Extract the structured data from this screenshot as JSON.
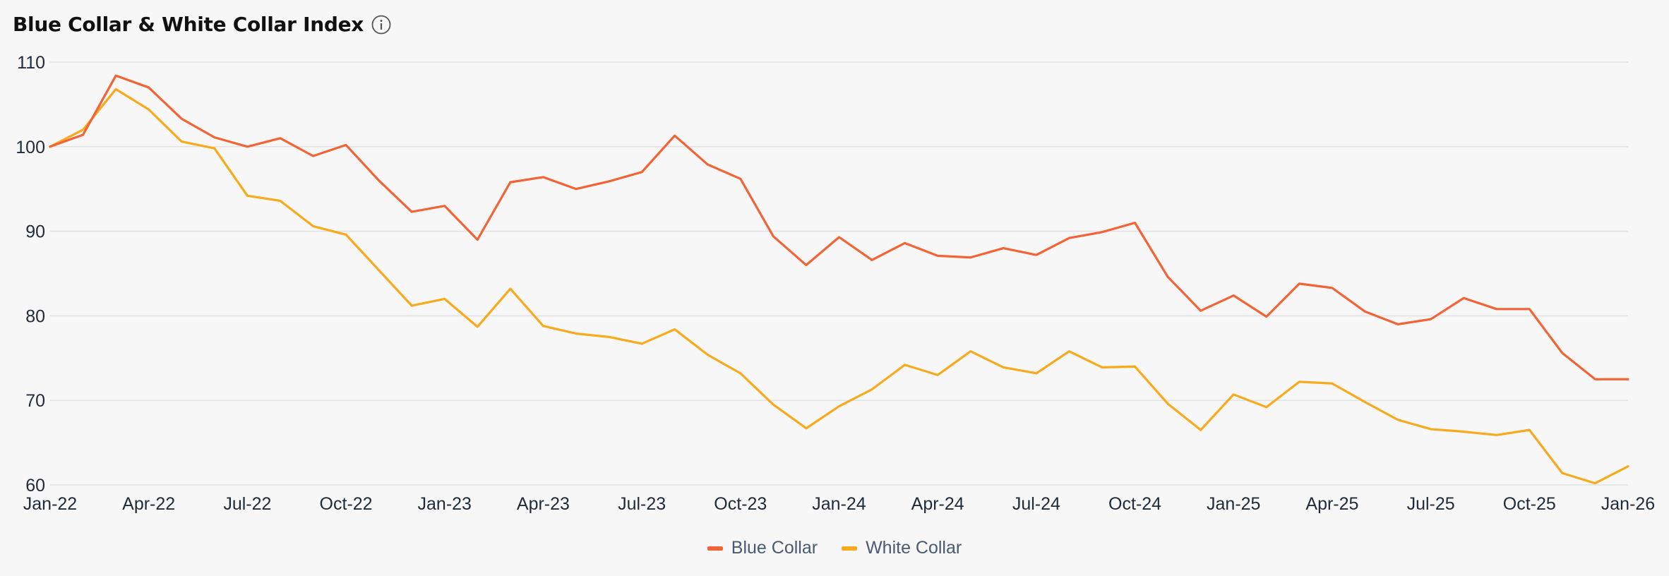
{
  "header": {
    "title": "Blue Collar & White Collar Index",
    "info_icon": "info-circle-icon"
  },
  "colors": {
    "blue_collar": "#f26436",
    "white_collar": "#f9a91c",
    "grid": "#e2e2e2",
    "background": "#f7f7f7"
  },
  "chart_data": {
    "type": "line",
    "title": "Blue Collar & White Collar Index",
    "xlabel": "",
    "ylabel": "",
    "ylim": [
      60,
      110
    ],
    "yticks": [
      60,
      70,
      80,
      90,
      100,
      110
    ],
    "x_tick_labels": [
      "Jan-22",
      "Apr-22",
      "Jul-22",
      "Oct-22",
      "Jan-23",
      "Apr-23",
      "Jul-23",
      "Oct-23",
      "Jan-24",
      "Apr-24",
      "Jul-24",
      "Oct-24",
      "Jan-25",
      "Apr-25",
      "Jul-25",
      "Oct-25",
      "Jan-26"
    ],
    "x": [
      "Jan-22",
      "Feb-22",
      "Mar-22",
      "Apr-22",
      "May-22",
      "Jun-22",
      "Jul-22",
      "Aug-22",
      "Sep-22",
      "Oct-22",
      "Nov-22",
      "Dec-22",
      "Jan-23",
      "Feb-23",
      "Mar-23",
      "Apr-23",
      "May-23",
      "Jun-23",
      "Jul-23",
      "Aug-23",
      "Sep-23",
      "Oct-23",
      "Nov-23",
      "Dec-23",
      "Jan-24",
      "Feb-24",
      "Mar-24",
      "Apr-24",
      "May-24",
      "Jun-24",
      "Jul-24",
      "Aug-24",
      "Sep-24",
      "Oct-24",
      "Nov-24",
      "Dec-24",
      "Jan-25",
      "Feb-25",
      "Mar-25",
      "Apr-25",
      "May-25",
      "Jun-25",
      "Jul-25",
      "Aug-25",
      "Sep-25",
      "Oct-25",
      "Nov-25",
      "Dec-25",
      "Jan-26"
    ],
    "grid": true,
    "legend_position": "bottom-center",
    "series": [
      {
        "name": "Blue Collar",
        "color": "#f26436",
        "values": [
          100.0,
          101.4,
          108.4,
          107.0,
          103.3,
          101.1,
          100.0,
          101.0,
          98.9,
          100.2,
          96.0,
          92.3,
          93.0,
          89.0,
          95.8,
          96.4,
          95.0,
          95.9,
          97.0,
          101.3,
          97.9,
          96.2,
          89.4,
          86.0,
          89.3,
          86.6,
          88.6,
          87.1,
          86.9,
          88.0,
          87.2,
          89.2,
          89.9,
          91.0,
          84.6,
          80.6,
          82.4,
          79.9,
          83.8,
          83.3,
          80.5,
          79.0,
          79.6,
          82.1,
          80.8,
          80.8,
          75.6,
          72.5,
          72.5
        ]
      },
      {
        "name": "White Collar",
        "color": "#f9a91c",
        "values": [
          100.0,
          102.0,
          106.8,
          104.4,
          100.6,
          99.8,
          94.2,
          93.6,
          90.6,
          89.6,
          85.4,
          81.2,
          82.0,
          78.7,
          83.2,
          78.8,
          77.9,
          77.5,
          76.7,
          78.4,
          75.4,
          73.2,
          69.5,
          66.7,
          69.3,
          71.3,
          74.2,
          73.0,
          75.8,
          73.9,
          73.2,
          75.8,
          73.9,
          74.0,
          69.6,
          66.5,
          70.7,
          69.2,
          72.2,
          72.0,
          69.8,
          67.7,
          66.6,
          66.3,
          65.9,
          66.5,
          61.4,
          60.2,
          62.2
        ]
      }
    ]
  },
  "legend": {
    "items": [
      {
        "label": "Blue Collar",
        "color": "#f26436"
      },
      {
        "label": "White Collar",
        "color": "#f9a91c"
      }
    ]
  }
}
